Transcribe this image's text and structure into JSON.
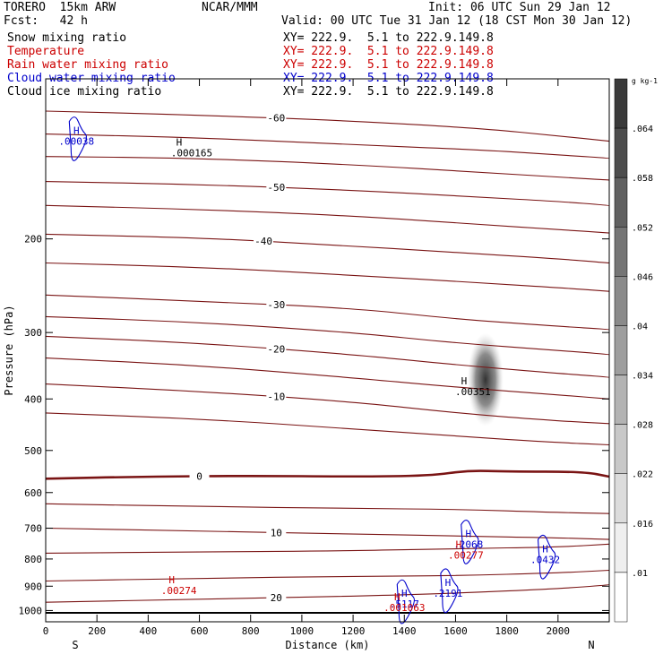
{
  "header": {
    "model": "TORERO  15km ARW",
    "org": "NCAR/MMM",
    "init": "Init: 06 UTC Sun 29 Jan 12",
    "fcst": "Fcst:   42 h",
    "valid": "Valid: 00 UTC Tue 31 Jan 12 (18 CST Mon 30 Jan 12)"
  },
  "fields": [
    {
      "name": "Snow mixing ratio",
      "xy": "XY= 222.9.  5.1 to 222.9.149.8",
      "color": "#000000"
    },
    {
      "name": "Temperature",
      "xy": "XY= 222.9.  5.1 to 222.9.149.8",
      "color": "#cc0000"
    },
    {
      "name": "Rain water mixing ratio",
      "xy": "XY= 222.9.  5.1 to 222.9.149.8",
      "color": "#cc0000"
    },
    {
      "name": "Cloud water mixing ratio",
      "xy": "XY= 222.9.  5.1 to 222.9.149.8",
      "color": "#0000cc"
    },
    {
      "name": "Cloud ice mixing ratio",
      "xy": "XY= 222.9.  5.1 to 222.9.149.8",
      "color": "#000000"
    }
  ],
  "chart_data": {
    "type": "cross-section",
    "xlabel": "Distance (km)",
    "ylabel": "Pressure (hPa)",
    "xlim": [
      0,
      2200
    ],
    "ylim": [
      1050,
      100
    ],
    "y_scale": "log",
    "xticks": [
      0,
      200,
      400,
      600,
      800,
      1000,
      1200,
      1400,
      1600,
      1800,
      2000
    ],
    "yticks": [
      200,
      300,
      400,
      500,
      600,
      700,
      800,
      900,
      1000
    ],
    "x_end_labels": {
      "left": "S",
      "right": "N"
    },
    "colorbar": {
      "unit": "g kg-1",
      "ticks": [
        ".064",
        ".058",
        ".052",
        ".046",
        ".04",
        ".034",
        ".028",
        ".022",
        ".016",
        ".01"
      ],
      "shades": [
        "#3a3a3a",
        "#4d4d4d",
        "#616161",
        "#757575",
        "#8a8a8a",
        "#9e9e9e",
        "#b3b3b3",
        "#c8c8c8",
        "#dcdcdc",
        "#efefef",
        "#ffffff"
      ]
    },
    "temperature_contours": [
      {
        "level": -60,
        "label": "-60",
        "points": [
          [
            0,
            115
          ],
          [
            600,
            117
          ],
          [
            1200,
            120
          ],
          [
            1700,
            124
          ],
          [
            2000,
            128
          ],
          [
            2200,
            131
          ]
        ]
      },
      {
        "level": -60,
        "label": "",
        "points": [
          [
            0,
            127
          ],
          [
            600,
            129
          ],
          [
            1200,
            133
          ],
          [
            1700,
            136
          ],
          [
            2000,
            139
          ],
          [
            2200,
            141
          ]
        ]
      },
      {
        "level": -60,
        "label": "",
        "points": [
          [
            0,
            140
          ],
          [
            600,
            141
          ],
          [
            1200,
            145
          ],
          [
            1700,
            150
          ],
          [
            2000,
            153
          ],
          [
            2200,
            155
          ]
        ]
      },
      {
        "level": -50,
        "label": "-50",
        "points": [
          [
            0,
            156
          ],
          [
            600,
            158
          ],
          [
            1200,
            162
          ],
          [
            1700,
            167
          ],
          [
            2000,
            170
          ],
          [
            2200,
            173
          ]
        ]
      },
      {
        "level": -50,
        "label": "",
        "points": [
          [
            0,
            173
          ],
          [
            600,
            176
          ],
          [
            1200,
            181
          ],
          [
            1700,
            188
          ],
          [
            2000,
            192
          ],
          [
            2200,
            195
          ]
        ]
      },
      {
        "level": -40,
        "label": "-40",
        "points": [
          [
            0,
            196
          ],
          [
            600,
            199
          ],
          [
            1100,
            205
          ],
          [
            1600,
            212
          ],
          [
            2000,
            218
          ],
          [
            2200,
            222
          ]
        ]
      },
      {
        "level": -40,
        "label": "",
        "points": [
          [
            0,
            222
          ],
          [
            600,
            226
          ],
          [
            1200,
            234
          ],
          [
            1700,
            242
          ],
          [
            2000,
            247
          ],
          [
            2200,
            251
          ]
        ]
      },
      {
        "level": -30,
        "label": "-30",
        "points": [
          [
            0,
            255
          ],
          [
            600,
            262
          ],
          [
            1200,
            270
          ],
          [
            1600,
            283
          ],
          [
            2000,
            292
          ],
          [
            2200,
            296
          ]
        ]
      },
      {
        "level": -30,
        "label": "",
        "points": [
          [
            0,
            280
          ],
          [
            600,
            287
          ],
          [
            1200,
            300
          ],
          [
            1600,
            314
          ],
          [
            2000,
            324
          ],
          [
            2200,
            330
          ]
        ]
      },
      {
        "level": -20,
        "label": "-20",
        "points": [
          [
            0,
            305
          ],
          [
            600,
            314
          ],
          [
            1200,
            330
          ],
          [
            1600,
            345
          ],
          [
            2000,
            358
          ],
          [
            2200,
            364
          ]
        ]
      },
      {
        "level": -20,
        "label": "",
        "points": [
          [
            0,
            335
          ],
          [
            600,
            346
          ],
          [
            1200,
            365
          ],
          [
            1600,
            380
          ],
          [
            2000,
            393
          ],
          [
            2200,
            400
          ]
        ]
      },
      {
        "level": -10,
        "label": "-10",
        "points": [
          [
            0,
            375
          ],
          [
            600,
            387
          ],
          [
            1200,
            405
          ],
          [
            1600,
            425
          ],
          [
            2000,
            440
          ],
          [
            2200,
            445
          ]
        ]
      },
      {
        "level": -10,
        "label": "",
        "points": [
          [
            0,
            425
          ],
          [
            600,
            436
          ],
          [
            1200,
            455
          ],
          [
            1600,
            470
          ],
          [
            2000,
            483
          ],
          [
            2200,
            488
          ]
        ]
      },
      {
        "level": 0,
        "label": "0",
        "points": [
          [
            0,
            565
          ],
          [
            400,
            560
          ],
          [
            800,
            558
          ],
          [
            1200,
            560
          ],
          [
            1500,
            558
          ],
          [
            1650,
            545
          ],
          [
            1800,
            548
          ],
          [
            2100,
            548
          ],
          [
            2200,
            560
          ]
        ]
      },
      {
        "level": 10,
        "label": "",
        "points": [
          [
            0,
            630
          ],
          [
            600,
            637
          ],
          [
            1200,
            643
          ],
          [
            1600,
            645
          ],
          [
            2000,
            654
          ],
          [
            2200,
            657
          ]
        ]
      },
      {
        "level": 10,
        "label": "10",
        "points": [
          [
            0,
            700
          ],
          [
            600,
            709
          ],
          [
            1200,
            718
          ],
          [
            1600,
            724
          ],
          [
            2000,
            730
          ],
          [
            2200,
            735
          ]
        ]
      },
      {
        "level": 10,
        "label": "",
        "points": [
          [
            0,
            780
          ],
          [
            600,
            776
          ],
          [
            1200,
            772
          ],
          [
            1600,
            765
          ],
          [
            2000,
            760
          ],
          [
            2200,
            750
          ]
        ]
      },
      {
        "level": 20,
        "label": "",
        "points": [
          [
            0,
            880
          ],
          [
            600,
            870
          ],
          [
            1200,
            862
          ],
          [
            1600,
            860
          ],
          [
            2000,
            850
          ],
          [
            2200,
            840
          ]
        ]
      },
      {
        "level": 20,
        "label": "20",
        "points": [
          [
            0,
            965
          ],
          [
            600,
            952
          ],
          [
            1200,
            940
          ],
          [
            1600,
            928
          ],
          [
            2000,
            910
          ],
          [
            2200,
            895
          ]
        ]
      }
    ],
    "snow_max": {
      "label": ".00351",
      "x": 1640,
      "p": 390
    },
    "rain_maxima": [
      {
        "label": ".00277",
        "x": 1640,
        "p": 780
      },
      {
        "label": ".00274",
        "x": 520,
        "p": 910
      },
      {
        "label": ".001063",
        "x": 1400,
        "p": 980
      }
    ],
    "cloud_water_maxima": [
      {
        "label": ".2068",
        "x": 1650,
        "p": 745
      },
      {
        "label": ".0432",
        "x": 1950,
        "p": 795
      },
      {
        "label": ".2191",
        "x": 1570,
        "p": 920
      },
      {
        "label": ".5117",
        "x": 1400,
        "p": 965
      },
      {
        "label": ".00038",
        "x": 120,
        "p": 130
      }
    ],
    "cloud_ice_max": {
      "label": ".000165",
      "x": 570,
      "p": 140
    }
  }
}
